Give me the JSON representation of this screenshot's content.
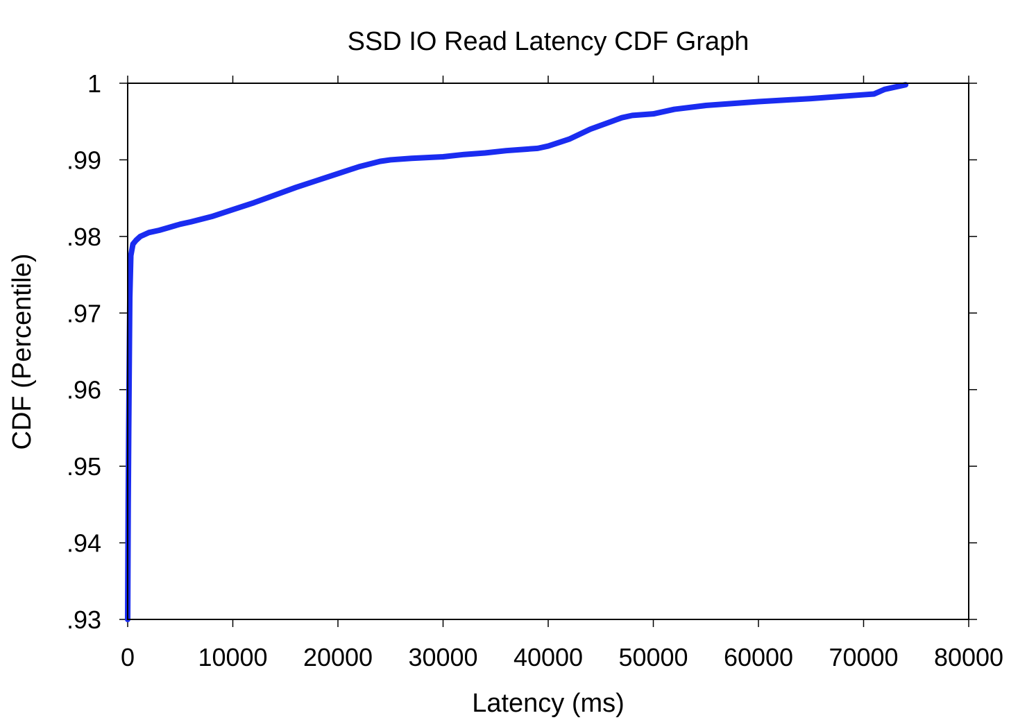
{
  "chart_data": {
    "type": "line",
    "title": "SSD IO Read Latency CDF Graph",
    "xlabel": "Latency (ms)",
    "ylabel": "CDF (Percentile)",
    "xlim": [
      0,
      80000
    ],
    "ylim": [
      0.93,
      1
    ],
    "x_ticks": [
      0,
      10000,
      20000,
      30000,
      40000,
      50000,
      60000,
      70000,
      80000
    ],
    "x_tick_labels": [
      "0",
      "10000",
      "20000",
      "30000",
      "40000",
      "50000",
      "60000",
      "70000",
      "80000"
    ],
    "y_ticks": [
      0.93,
      0.94,
      0.95,
      0.96,
      0.97,
      0.98,
      0.99,
      1
    ],
    "y_tick_labels": [
      ".93",
      ".94",
      ".95",
      ".96",
      ".97",
      ".98",
      ".99",
      "1"
    ],
    "grid": false,
    "legend": "none",
    "series_color": "#1a2cf0",
    "series": [
      {
        "x": [
          0,
          50,
          100,
          200,
          300,
          500,
          800,
          1200,
          2000,
          3000,
          4000,
          5000,
          6000,
          8000,
          10000,
          12000,
          14000,
          16000,
          18000,
          20000,
          22000,
          24000,
          25000,
          27000,
          30000,
          32000,
          34000,
          36000,
          38000,
          39000,
          40000,
          42000,
          44000,
          46000,
          47000,
          48000,
          50000,
          52000,
          55000,
          60000,
          65000,
          68000,
          70000,
          71000,
          72000,
          74000
        ],
        "y": [
          0.93,
          0.945,
          0.955,
          0.972,
          0.9775,
          0.979,
          0.9795,
          0.98,
          0.9805,
          0.9808,
          0.9812,
          0.9816,
          0.9819,
          0.9826,
          0.9835,
          0.9844,
          0.9854,
          0.9864,
          0.9873,
          0.9882,
          0.9891,
          0.9898,
          0.99,
          0.9902,
          0.9904,
          0.9907,
          0.9909,
          0.9912,
          0.9914,
          0.9915,
          0.9918,
          0.9927,
          0.994,
          0.995,
          0.9955,
          0.9958,
          0.996,
          0.9966,
          0.9971,
          0.9976,
          0.998,
          0.9983,
          0.9985,
          0.9986,
          0.9992,
          0.9998
        ]
      }
    ]
  }
}
